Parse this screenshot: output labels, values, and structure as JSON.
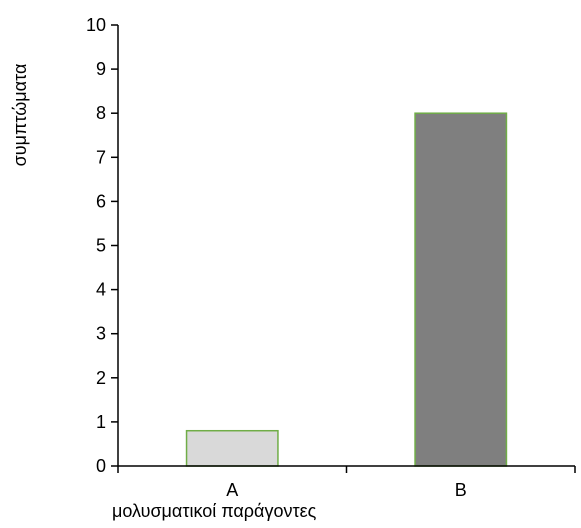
{
  "chart_data": {
    "type": "bar",
    "categories": [
      "A",
      "B"
    ],
    "values": [
      0.8,
      8
    ],
    "xlabel": "μολυσματικοί παράγοντες",
    "ylabel": "συμπτώματα",
    "ylim": [
      0,
      10
    ],
    "yticks": [
      0,
      1,
      2,
      3,
      4,
      5,
      6,
      7,
      8,
      9,
      10
    ],
    "grid": false,
    "legend": "none",
    "colors": {
      "bars": [
        "#d9d9d9",
        "#7f7f7f"
      ],
      "bar_border": "#70ad47",
      "axis": "#000000"
    }
  }
}
